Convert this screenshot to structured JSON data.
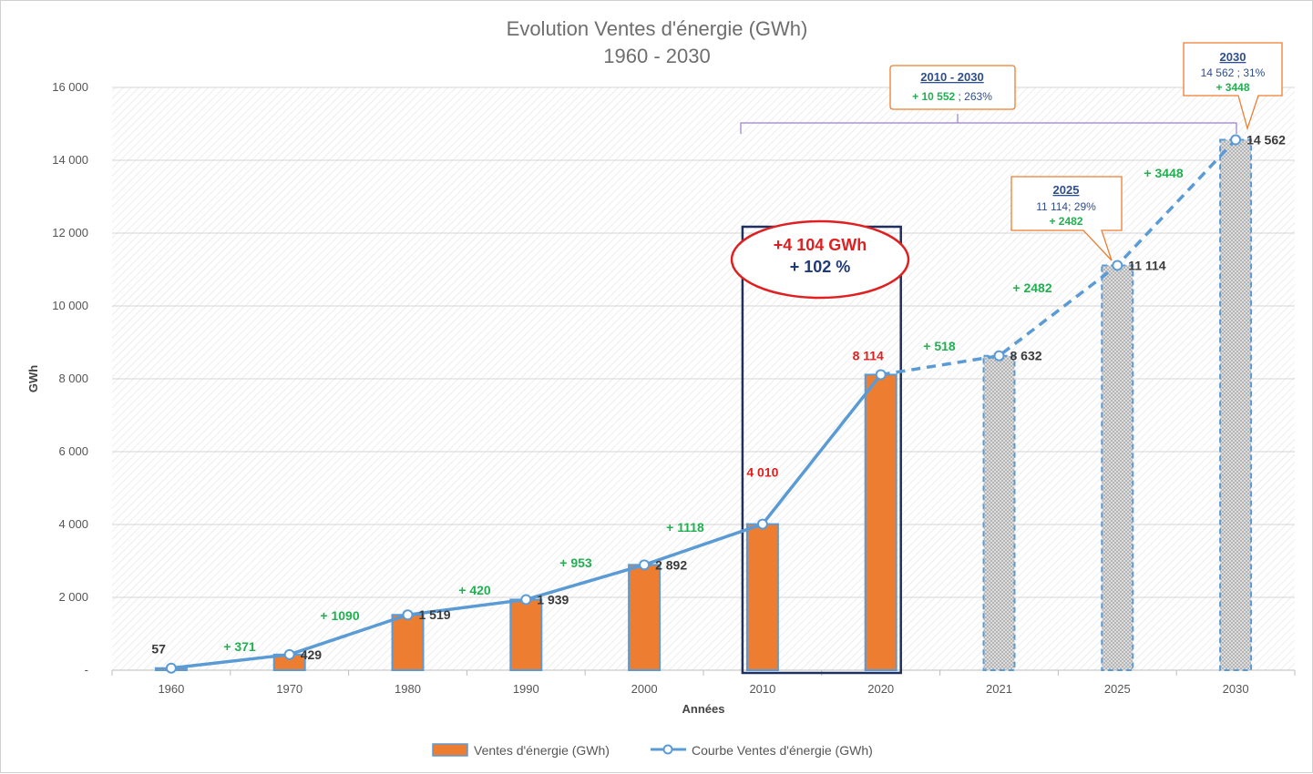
{
  "chart_data": {
    "type": "bar",
    "title": "Evolution Ventes d'énergie (GWh)",
    "subtitle": "1960 - 2030",
    "xlabel": "Années",
    "ylabel": "GWh",
    "ylim": [
      0,
      16000
    ],
    "yticks": [
      0,
      2000,
      4000,
      6000,
      8000,
      10000,
      12000,
      14000,
      16000
    ],
    "ytick_labels": [
      "-",
      "2 000",
      "4 000",
      "6 000",
      "8 000",
      "10 000",
      "12 000",
      "14 000",
      "16 000"
    ],
    "categories": [
      "1960",
      "1970",
      "1980",
      "1990",
      "2000",
      "2010",
      "2020",
      "2021",
      "2025",
      "2030"
    ],
    "grid": true,
    "legend_position": "bottom",
    "series": [
      {
        "name": "Ventes d'énergie (GWh)",
        "type": "bar",
        "color": "#ed7d31",
        "values": [
          57,
          429,
          1519,
          1939,
          2892,
          4010,
          8114,
          8632,
          11114,
          14562
        ],
        "projected": [
          false,
          false,
          false,
          false,
          false,
          false,
          false,
          true,
          true,
          true
        ]
      },
      {
        "name": "Courbe Ventes d'énergie (GWh)",
        "type": "line",
        "color": "#5b9bd5",
        "values": [
          57,
          429,
          1519,
          1939,
          2892,
          4010,
          8114,
          8632,
          11114,
          14562
        ],
        "projected": [
          false,
          false,
          false,
          false,
          false,
          false,
          false,
          true,
          true,
          true
        ]
      }
    ],
    "value_labels": [
      "57",
      "429",
      "1 519",
      "1 939",
      "2 892",
      "4 010",
      "8 114",
      "8 632",
      "11 114",
      "14 562"
    ],
    "delta_labels": [
      "+ 371",
      "+ 1090",
      "+ 420",
      "+ 953",
      "+ 1118",
      "",
      "+ 518",
      "+ 2482",
      "+ 3448"
    ],
    "highlight": {
      "line1": "+4 104 GWh",
      "line2": "+ 102 %"
    },
    "callouts": [
      {
        "title": "2010 - 2030",
        "line1": "+ 10 552",
        "line1_rest": " ; 263%"
      },
      {
        "title": "2025",
        "line1": "11 114; 29%",
        "line2": "+ 2482"
      },
      {
        "title": "2030",
        "line1": "14 562 ; 31%",
        "line2": "+ 3448"
      }
    ]
  }
}
